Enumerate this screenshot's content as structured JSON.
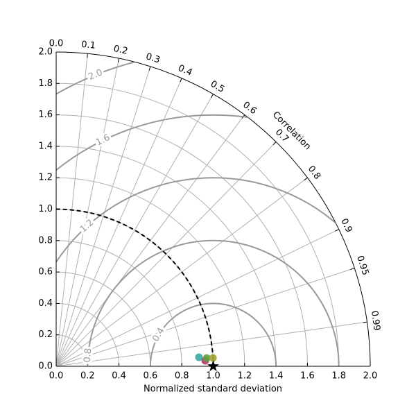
{
  "chart_data": {
    "type": "taylor",
    "xlabel": "Normalized standard deviation",
    "corr_label": "Correlation",
    "rlim": [
      0,
      2
    ],
    "rticks": [
      {
        "value": 0,
        "label": "0.0"
      },
      0.2,
      0.4,
      0.6,
      0.8,
      {
        "value": 1,
        "label": "1.0"
      },
      1.2,
      1.4,
      1.6,
      1.8,
      {
        "value": 2,
        "label": "2.0"
      }
    ],
    "corr_ticks": [
      {
        "value": 0,
        "label": "0.0"
      },
      0.1,
      0.2,
      0.3,
      0.4,
      0.5,
      0.6,
      0.7,
      0.8,
      0.9,
      0.95,
      0.99
    ],
    "rms_contours": [
      0.4,
      0.8,
      1.2,
      1.6,
      {
        "value": 2,
        "label": "2.0"
      }
    ],
    "grid": true,
    "reference": {
      "std": 1,
      "corr": 1
    },
    "points": {
      "std": [
        0.911,
        0.95,
        0.96,
        1.0
      ],
      "corr": [
        0.998,
        0.9993,
        0.9985,
        0.9986
      ],
      "colors": [
        "#3aa8a0",
        "#b03a68",
        "#5e9e40",
        "#a4a436"
      ]
    }
  }
}
